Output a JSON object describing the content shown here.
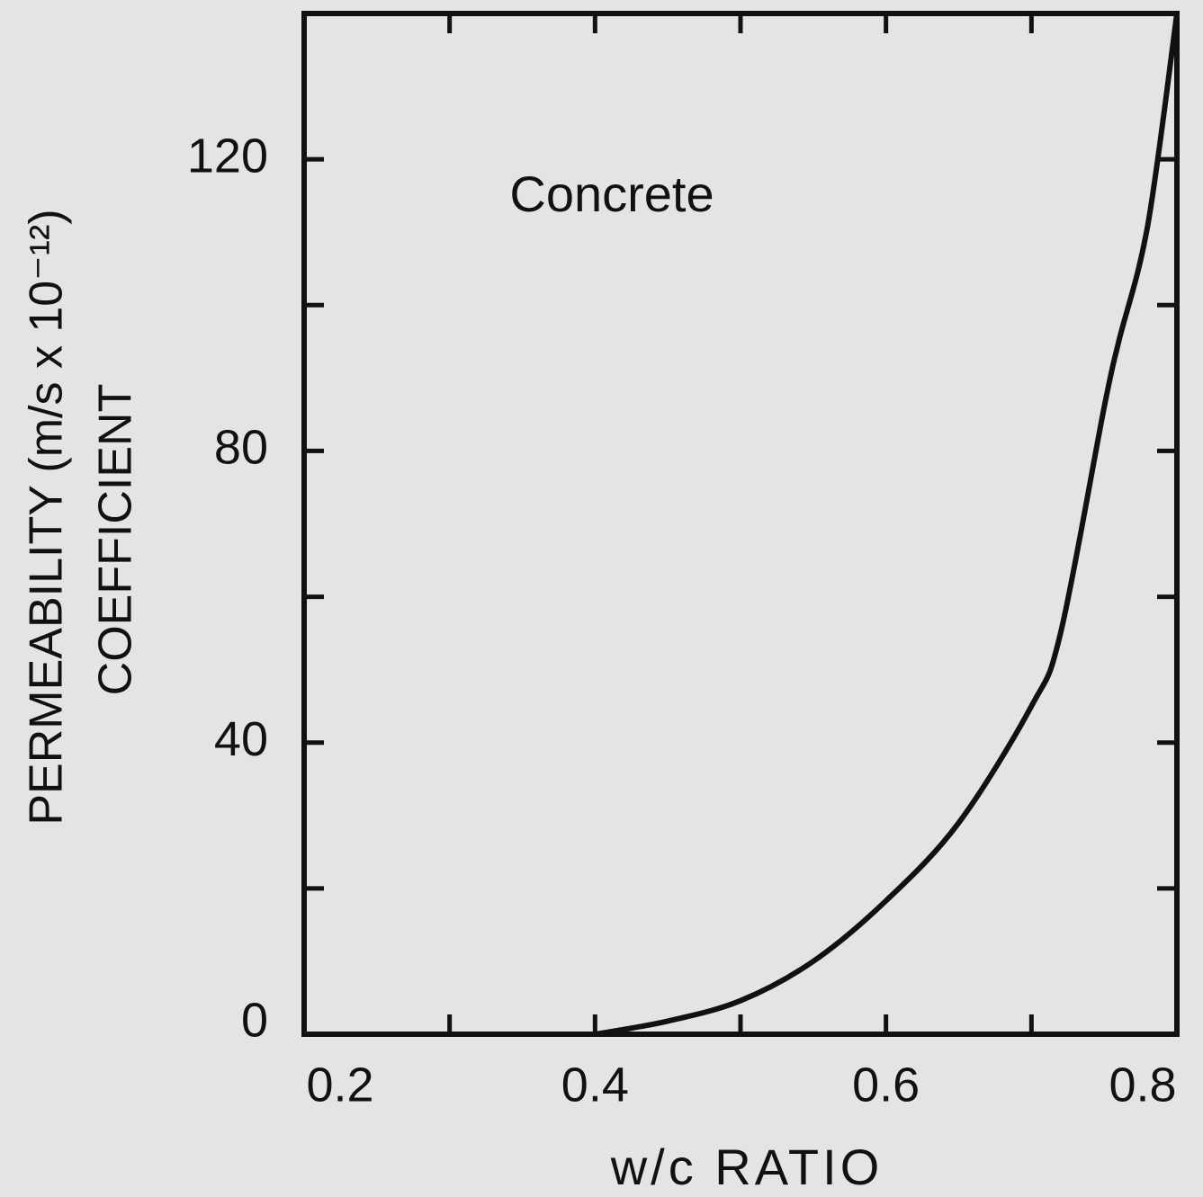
{
  "chart_data": {
    "type": "line",
    "annotation": "Concrete",
    "x_label": "w/c RATIO",
    "y_label": [
      "PERMEABILITY (m/s  x  10⁻¹²)",
      "COEFFICIENT"
    ],
    "xlim": [
      0.2,
      0.8
    ],
    "ylim": [
      0,
      140
    ],
    "xticks": [
      0.2,
      0.4,
      0.6,
      0.8
    ],
    "minor_xticks": [
      0.3,
      0.5,
      0.7
    ],
    "yticks": [
      0,
      40,
      80,
      120
    ],
    "minor_yticks": [
      20,
      60,
      100,
      140
    ],
    "color": "#111111",
    "x": [
      0.4,
      0.45,
      0.5,
      0.55,
      0.6,
      0.65,
      0.7,
      0.72,
      0.75,
      0.76,
      0.78,
      0.8
    ],
    "values": [
      0,
      1.8,
      4.6,
      10,
      18.3,
      29,
      45,
      55,
      86,
      95,
      111,
      140
    ]
  }
}
